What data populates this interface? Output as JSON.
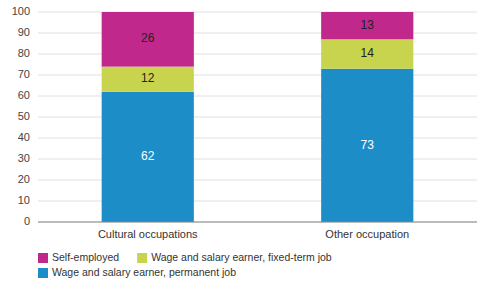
{
  "chart_data": {
    "type": "bar",
    "stacked": true,
    "data_labels": true,
    "grid": true,
    "legend": "bottom",
    "categories": [
      "Cultural occupations",
      "Other occupation"
    ],
    "series": [
      {
        "name": "Wage and salary earner, permanent job",
        "color": "#1c8dc7",
        "values": [
          62,
          73
        ]
      },
      {
        "name": "Wage and salary earner, fixed-term job",
        "color": "#c8d44e",
        "values": [
          12,
          14
        ]
      },
      {
        "name": "Self-employed",
        "color": "#c0288c",
        "values": [
          26,
          13
        ]
      }
    ],
    "ylim": [
      0,
      100
    ],
    "yticks": [
      0,
      10,
      20,
      30,
      40,
      50,
      60,
      70,
      80,
      90,
      100
    ]
  }
}
